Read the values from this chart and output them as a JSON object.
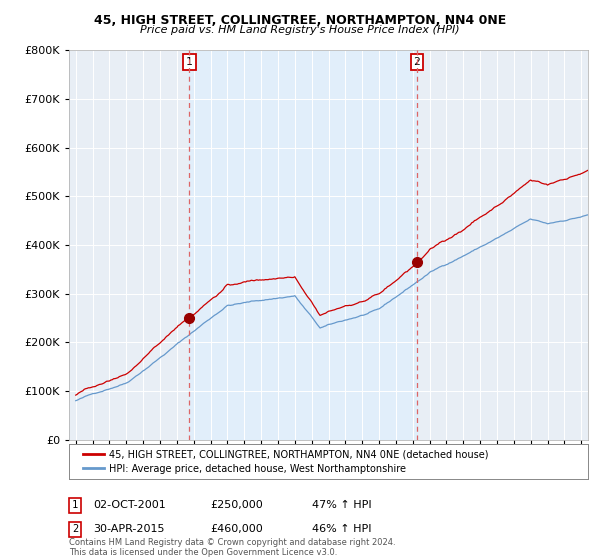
{
  "title1": "45, HIGH STREET, COLLINGTREE, NORTHAMPTON, NN4 0NE",
  "title2": "Price paid vs. HM Land Registry's House Price Index (HPI)",
  "ylabel_ticks": [
    "£0",
    "£100K",
    "£200K",
    "£300K",
    "£400K",
    "£500K",
    "£600K",
    "£700K",
    "£800K"
  ],
  "ytick_values": [
    0,
    100000,
    200000,
    300000,
    400000,
    500000,
    600000,
    700000,
    800000
  ],
  "ylim": [
    0,
    800000
  ],
  "sale1_x": 2001.75,
  "sale2_x": 2015.25,
  "sale1_price": 250000,
  "sale2_price": 460000,
  "line_color_red": "#cc0000",
  "line_color_blue": "#6699cc",
  "vline_color": "#dd6666",
  "shade_color": "#ddeeff",
  "marker_color_red": "#990000",
  "footnote": "Contains HM Land Registry data © Crown copyright and database right 2024.\nThis data is licensed under the Open Government Licence v3.0.",
  "legend1_label": "45, HIGH STREET, COLLINGTREE, NORTHAMPTON, NN4 0NE (detached house)",
  "legend2_label": "HPI: Average price, detached house, West Northamptonshire",
  "sale1_annotation": "02-OCT-2001",
  "sale1_price_str": "£250,000",
  "sale1_hpi_str": "47% ↑ HPI",
  "sale2_annotation": "30-APR-2015",
  "sale2_price_str": "£460,000",
  "sale2_hpi_str": "46% ↑ HPI",
  "background_color": "#ffffff",
  "plot_bg_color": "#e8eef5",
  "grid_color": "#ffffff",
  "xlim_left": 1994.6,
  "xlim_right": 2025.4
}
